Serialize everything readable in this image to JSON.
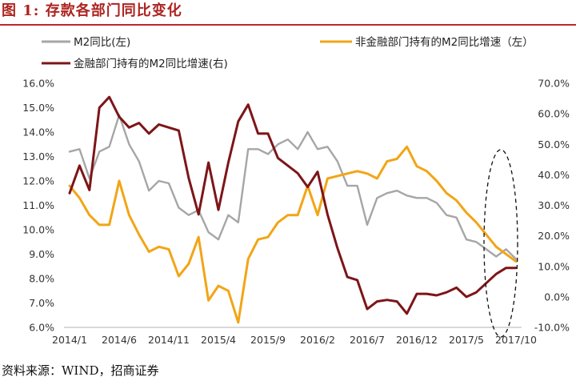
{
  "title": "图 1: 存款各部门同比变化",
  "source": "资料来源：WIND，招商证券",
  "colors": {
    "title": "#ad2420",
    "title_rule": "#c1272d"
  },
  "chart_data": {
    "type": "line",
    "x": [
      "2014/1",
      "2014/2",
      "2014/3",
      "2014/4",
      "2014/5",
      "2014/6",
      "2014/7",
      "2014/8",
      "2014/9",
      "2014/10",
      "2014/11",
      "2014/12",
      "2015/1",
      "2015/2",
      "2015/3",
      "2015/4",
      "2015/5",
      "2015/6",
      "2015/7",
      "2015/8",
      "2015/9",
      "2015/10",
      "2015/11",
      "2015/12",
      "2016/1",
      "2016/2",
      "2016/3",
      "2016/4",
      "2016/5",
      "2016/6",
      "2016/7",
      "2016/8",
      "2016/9",
      "2016/10",
      "2016/11",
      "2016/12",
      "2017/1",
      "2017/2",
      "2017/3",
      "2017/4",
      "2017/5",
      "2017/6",
      "2017/7",
      "2017/8",
      "2017/9",
      "2017/10"
    ],
    "x_tick_labels": [
      "2014/1",
      "2014/6",
      "2014/11",
      "2015/4",
      "2015/9",
      "2016/2",
      "2016/7",
      "2016/12",
      "2017/5",
      "2017/10"
    ],
    "y_left": {
      "range": [
        6,
        16
      ],
      "ticks": [
        "16.0%",
        "15.0%",
        "14.0%",
        "13.0%",
        "12.0%",
        "11.0%",
        "10.0%",
        "9.0%",
        "8.0%",
        "7.0%",
        "6.0%"
      ]
    },
    "y_right": {
      "range": [
        -10,
        70
      ],
      "ticks": [
        "70.0%",
        "60.0%",
        "50.0%",
        "40.0%",
        "30.0%",
        "20.0%",
        "10.0%",
        "0.0%",
        "-10.0%"
      ]
    },
    "grid": false,
    "legend": "top",
    "series": [
      {
        "name": "M2同比(左)",
        "axis": "left",
        "color": "#a6a6a6",
        "values": [
          13.2,
          13.3,
          12.1,
          13.2,
          13.4,
          14.7,
          13.5,
          12.8,
          11.6,
          12.0,
          11.9,
          10.9,
          10.6,
          10.8,
          9.9,
          9.6,
          10.6,
          10.3,
          13.3,
          13.3,
          13.1,
          13.5,
          13.7,
          13.3,
          14.0,
          13.3,
          13.4,
          12.8,
          11.8,
          11.8,
          10.2,
          11.3,
          11.5,
          11.6,
          11.4,
          11.3,
          11.3,
          11.1,
          10.6,
          10.5,
          9.6,
          9.5,
          9.2,
          8.9,
          9.2,
          8.8
        ]
      },
      {
        "name": "非金融部门持有的M2同比增速（左）",
        "axis": "left",
        "color": "#f2a516",
        "values": [
          11.8,
          11.3,
          10.6,
          10.2,
          10.2,
          12.0,
          10.6,
          9.8,
          9.1,
          9.3,
          9.2,
          8.1,
          8.6,
          9.7,
          7.1,
          7.7,
          7.5,
          6.2,
          8.8,
          9.6,
          9.7,
          10.3,
          10.6,
          10.6,
          11.8,
          10.6,
          12.1,
          12.2,
          12.3,
          12.4,
          12.3,
          12.1,
          12.8,
          12.9,
          13.4,
          12.6,
          12.4,
          12.0,
          11.5,
          11.2,
          10.7,
          10.3,
          9.8,
          9.3,
          9.0,
          8.7
        ]
      },
      {
        "name": "金融部门持有的M2同比增速(右)",
        "axis": "right",
        "color": "#7d1518",
        "values": [
          34,
          43,
          35,
          62,
          65.5,
          59,
          55.5,
          57,
          53.5,
          56.5,
          55.5,
          54.5,
          39,
          27,
          44,
          28.5,
          44,
          57.5,
          63,
          53.5,
          53.5,
          45.5,
          43,
          40.5,
          36,
          41,
          27,
          16,
          6.5,
          5.5,
          -4,
          -1.5,
          -1,
          -1.5,
          -5.5,
          1,
          1,
          0.5,
          1.5,
          3,
          0,
          1.5,
          4.5,
          7.5,
          9.5,
          9.5
        ]
      }
    ]
  }
}
